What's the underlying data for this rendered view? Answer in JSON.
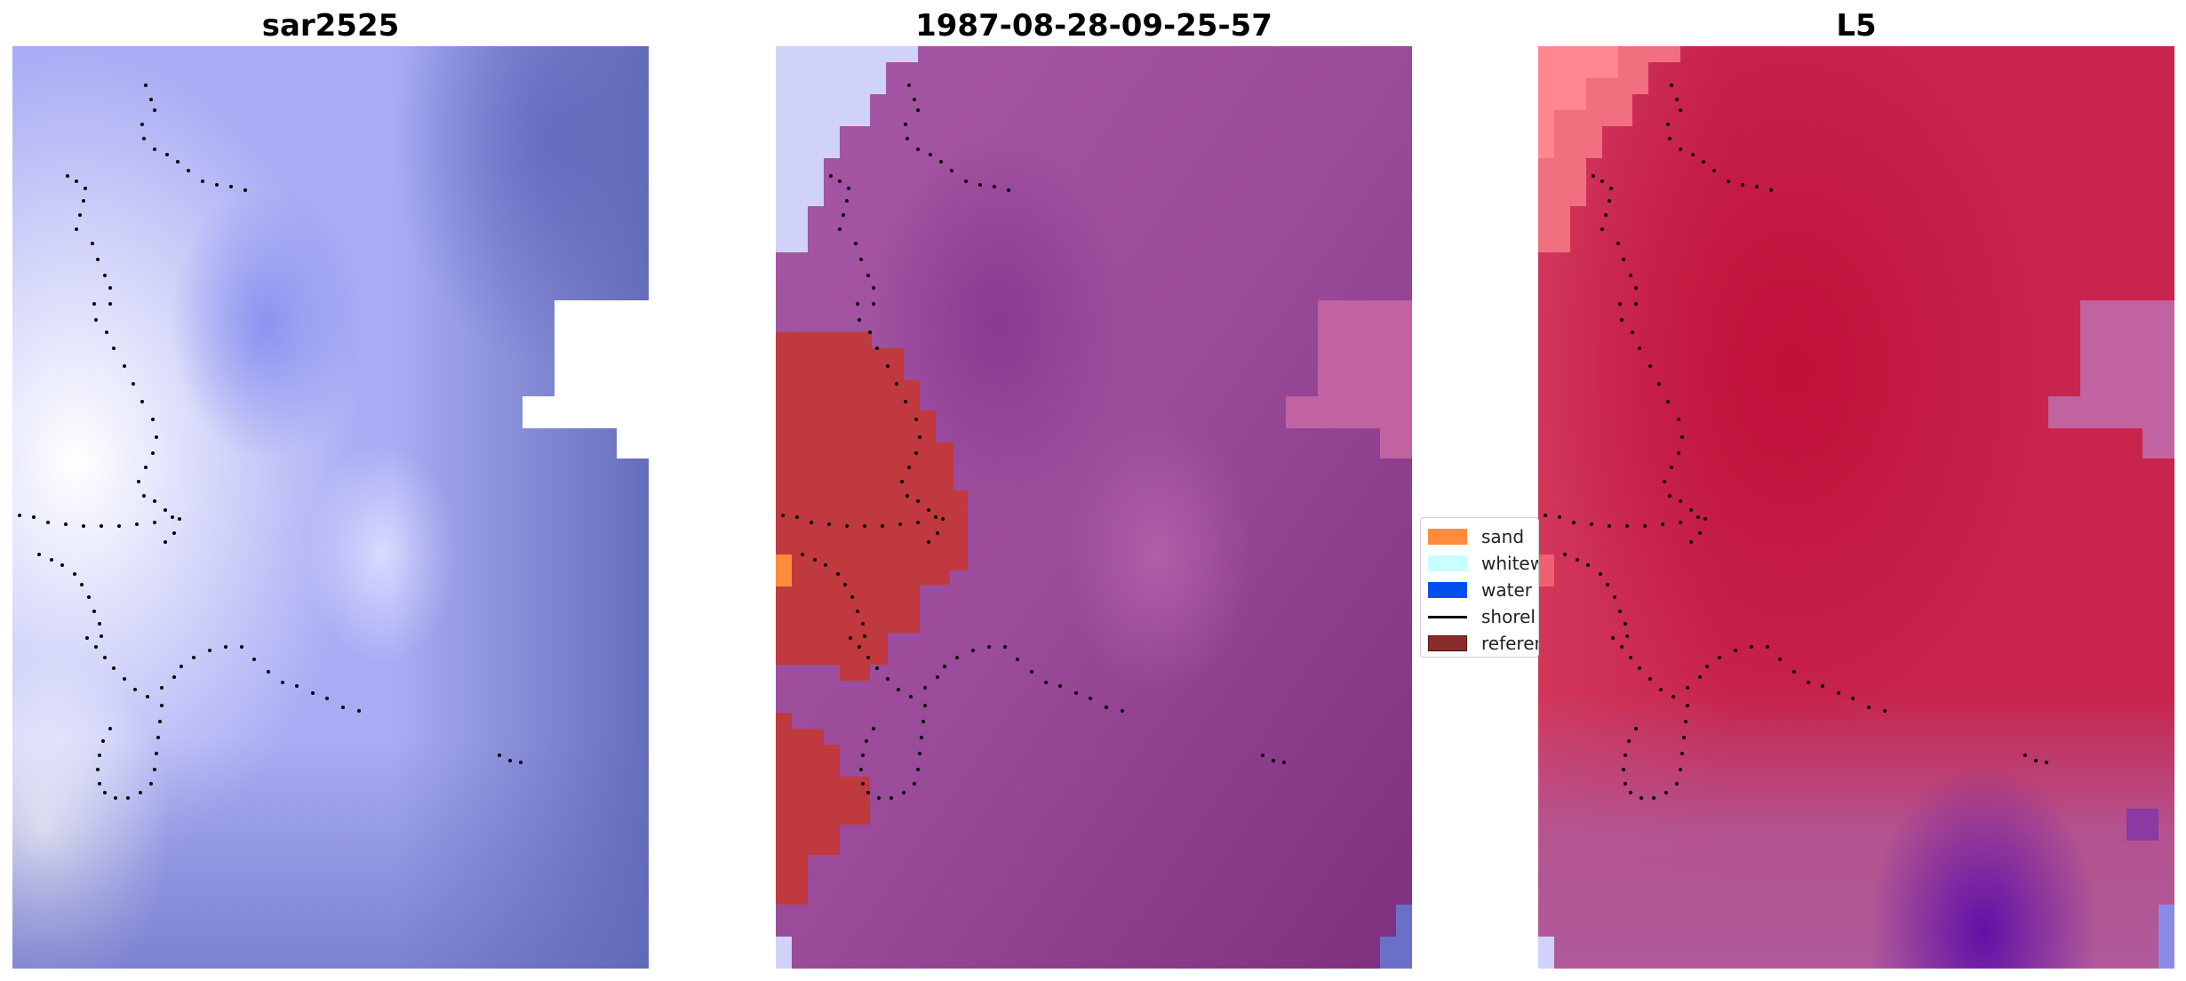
{
  "panels": [
    {
      "title": "sar2525",
      "style": "blue-tonal",
      "base_color": "#a8acf4"
    },
    {
      "title": "1987-08-28-09-25-57",
      "style": "classified",
      "base_color": "#9a4b9a"
    },
    {
      "title": "L5",
      "style": "red-tonal",
      "base_color": "#c8244c"
    }
  ],
  "legend": {
    "items": [
      {
        "label": "sand",
        "color": "#ff8c3a",
        "kind": "patch"
      },
      {
        "label": "whitew",
        "color": "#c8ffff",
        "kind": "patch"
      },
      {
        "label": "water",
        "color": "#0050f0",
        "kind": "patch"
      },
      {
        "label": "shorel",
        "color": "#000000",
        "kind": "line"
      },
      {
        "label": "referen",
        "color": "#8b2c2c",
        "kind": "patch"
      }
    ]
  },
  "colors": {
    "shoreline_dots": "#000000",
    "reference_region": "#c0393f",
    "nodata": "#ffffff"
  }
}
